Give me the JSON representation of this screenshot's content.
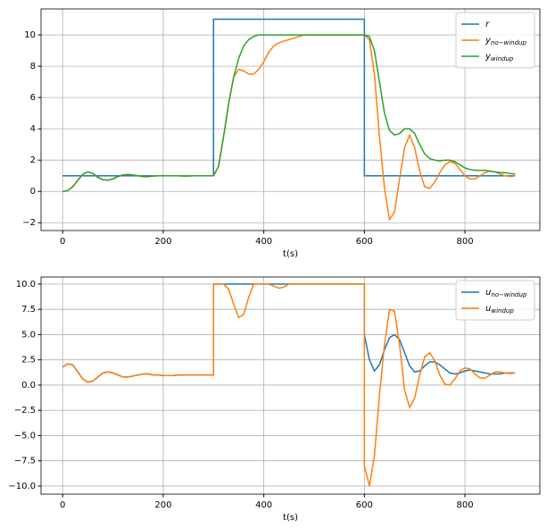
{
  "chart_data": [
    {
      "type": "line",
      "xlabel": "t(s)",
      "x": [
        0,
        10,
        20,
        30,
        40,
        50,
        60,
        70,
        80,
        90,
        100,
        110,
        120,
        130,
        140,
        150,
        160,
        170,
        180,
        190,
        200,
        210,
        220,
        230,
        240,
        250,
        260,
        270,
        280,
        290,
        300,
        300,
        310,
        320,
        330,
        340,
        350,
        360,
        370,
        380,
        390,
        400,
        410,
        420,
        430,
        440,
        450,
        460,
        470,
        480,
        490,
        500,
        510,
        520,
        530,
        540,
        550,
        560,
        570,
        580,
        590,
        600,
        600,
        610,
        620,
        630,
        640,
        650,
        660,
        670,
        680,
        690,
        700,
        710,
        720,
        730,
        740,
        750,
        760,
        770,
        780,
        790,
        800,
        810,
        820,
        830,
        840,
        850,
        860,
        870,
        880,
        890,
        900
      ],
      "series": [
        {
          "name": "r",
          "color": "#1f77b4",
          "values": [
            1,
            1,
            1,
            1,
            1,
            1,
            1,
            1,
            1,
            1,
            1,
            1,
            1,
            1,
            1,
            1,
            1,
            1,
            1,
            1,
            1,
            1,
            1,
            1,
            1,
            1,
            1,
            1,
            1,
            1,
            1,
            11,
            11,
            11,
            11,
            11,
            11,
            11,
            11,
            11,
            11,
            11,
            11,
            11,
            11,
            11,
            11,
            11,
            11,
            11,
            11,
            11,
            11,
            11,
            11,
            11,
            11,
            11,
            11,
            11,
            11,
            11,
            1,
            1,
            1,
            1,
            1,
            1,
            1,
            1,
            1,
            1,
            1,
            1,
            1,
            1,
            1,
            1,
            1,
            1,
            1,
            1,
            1,
            1,
            1,
            1,
            1,
            1,
            1,
            1,
            1,
            1,
            1
          ]
        },
        {
          "name": "y",
          "subscript": "no−windup",
          "color": "#ff7f0e",
          "values": [
            0,
            0.05,
            0.3,
            0.7,
            1.1,
            1.25,
            1.15,
            0.9,
            0.75,
            0.72,
            0.8,
            0.95,
            1.05,
            1.08,
            1.05,
            1.0,
            0.95,
            0.95,
            0.98,
            1.0,
            1.0,
            1.0,
            1.0,
            1.0,
            0.98,
            0.98,
            1.0,
            1.0,
            1.0,
            1.0,
            1.0,
            1.0,
            1.6,
            3.5,
            5.6,
            7.3,
            7.8,
            7.7,
            7.5,
            7.5,
            7.8,
            8.3,
            8.9,
            9.3,
            9.5,
            9.6,
            9.7,
            9.8,
            9.9,
            10,
            10,
            10,
            10,
            10,
            10,
            10,
            10,
            10,
            10,
            10,
            10,
            10,
            10,
            9.7,
            7.5,
            3.5,
            0.2,
            -1.8,
            -1.3,
            0.8,
            2.8,
            3.6,
            2.8,
            1.3,
            0.3,
            0.2,
            0.6,
            1.2,
            1.7,
            1.9,
            1.8,
            1.4,
            1.0,
            0.8,
            0.8,
            1.0,
            1.2,
            1.3,
            1.25,
            1.1,
            1.0,
            0.95,
            1.0
          ]
        },
        {
          "name": "y",
          "subscript": "windup",
          "color": "#2ca02c",
          "values": [
            0,
            0.05,
            0.3,
            0.7,
            1.1,
            1.25,
            1.15,
            0.9,
            0.75,
            0.72,
            0.8,
            0.95,
            1.05,
            1.08,
            1.05,
            1.0,
            0.95,
            0.95,
            0.98,
            1.0,
            1.0,
            1.0,
            1.0,
            1.0,
            0.98,
            0.98,
            1.0,
            1.0,
            1.0,
            1.0,
            1.0,
            1.0,
            1.6,
            3.5,
            5.6,
            7.3,
            8.5,
            9.3,
            9.7,
            9.9,
            10,
            10,
            10,
            10,
            10,
            10,
            10,
            10,
            10,
            10,
            10,
            10,
            10,
            10,
            10,
            10,
            10,
            10,
            10,
            10,
            10,
            10,
            10,
            9.9,
            9.0,
            7.0,
            5.0,
            3.9,
            3.6,
            3.7,
            4.0,
            4.0,
            3.7,
            3.0,
            2.4,
            2.1,
            2.0,
            1.95,
            2.0,
            2.0,
            1.9,
            1.7,
            1.5,
            1.4,
            1.35,
            1.35,
            1.35,
            1.3,
            1.25,
            1.2,
            1.2,
            1.15,
            1.1
          ]
        }
      ],
      "xlim": [
        -43,
        949
      ],
      "xticks": [
        0,
        200,
        400,
        600,
        800
      ],
      "ylim": [
        -2.5,
        11.66
      ],
      "yticks": [
        {
          "value": -2,
          "label": "−2"
        },
        0,
        2,
        4,
        6,
        8,
        10
      ],
      "grid": true,
      "legend": "upper right"
    },
    {
      "type": "line",
      "xlabel": "t(s)",
      "x": [
        0,
        10,
        20,
        30,
        40,
        50,
        60,
        70,
        80,
        90,
        100,
        110,
        120,
        130,
        140,
        150,
        160,
        170,
        180,
        190,
        200,
        210,
        220,
        230,
        240,
        250,
        260,
        270,
        280,
        290,
        300,
        300,
        310,
        320,
        330,
        340,
        350,
        360,
        370,
        380,
        390,
        400,
        410,
        420,
        430,
        440,
        450,
        460,
        470,
        480,
        490,
        500,
        510,
        520,
        530,
        540,
        550,
        560,
        570,
        580,
        590,
        600,
        600,
        610,
        620,
        630,
        640,
        650,
        660,
        670,
        680,
        690,
        700,
        710,
        720,
        730,
        740,
        750,
        760,
        770,
        780,
        790,
        800,
        810,
        820,
        830,
        840,
        850,
        860,
        870,
        880,
        890,
        900
      ],
      "series": [
        {
          "name": "u",
          "subscript": "no−windup",
          "color": "#1f77b4",
          "values": [
            1.8,
            2.1,
            2.0,
            1.3,
            0.6,
            0.3,
            0.4,
            0.8,
            1.2,
            1.3,
            1.2,
            1.0,
            0.8,
            0.8,
            0.9,
            1.0,
            1.1,
            1.1,
            1.0,
            1.0,
            0.95,
            0.95,
            0.95,
            1.0,
            1.0,
            1.0,
            1.0,
            1.0,
            1.0,
            1.0,
            1.0,
            10,
            10,
            10,
            10,
            10,
            10,
            10,
            10,
            10,
            10,
            10,
            10,
            10,
            10,
            10,
            10,
            10,
            10,
            10,
            10,
            10,
            10,
            10,
            10,
            10,
            10,
            10,
            10,
            10,
            10,
            10,
            5.0,
            2.5,
            1.4,
            2.0,
            3.5,
            4.7,
            5.0,
            4.5,
            3.2,
            1.9,
            1.3,
            1.4,
            1.9,
            2.3,
            2.3,
            2.0,
            1.6,
            1.2,
            1.1,
            1.2,
            1.4,
            1.5,
            1.4,
            1.3,
            1.2,
            1.1,
            1.1,
            1.1,
            1.2,
            1.2,
            1.2
          ]
        },
        {
          "name": "u",
          "subscript": "windup",
          "color": "#ff7f0e",
          "values": [
            1.8,
            2.1,
            2.0,
            1.3,
            0.6,
            0.3,
            0.4,
            0.8,
            1.2,
            1.3,
            1.2,
            1.0,
            0.8,
            0.8,
            0.9,
            1.0,
            1.1,
            1.1,
            1.0,
            1.0,
            0.95,
            0.95,
            0.95,
            1.0,
            1.0,
            1.0,
            1.0,
            1.0,
            1.0,
            1.0,
            1.0,
            10,
            10,
            10,
            9.5,
            8.0,
            6.7,
            7.0,
            8.7,
            10,
            10,
            10,
            10,
            9.8,
            9.6,
            9.7,
            10,
            10,
            10,
            10,
            10,
            10,
            10,
            10,
            10,
            10,
            10,
            10,
            10,
            10,
            10,
            10,
            -8,
            -10,
            -7,
            -1,
            4,
            7.5,
            7.3,
            4,
            -0.5,
            -2.2,
            -1.3,
            1,
            2.8,
            3.2,
            2.4,
            1,
            0.1,
            0,
            0.6,
            1.4,
            1.7,
            1.6,
            1.1,
            0.7,
            0.7,
            1.0,
            1.3,
            1.3,
            1.2,
            1.15,
            1.2
          ]
        }
      ],
      "xlim": [
        -43,
        949
      ],
      "xticks": [
        0,
        200,
        400,
        600,
        800
      ],
      "ylim": [
        -10.8,
        10.7
      ],
      "yticks": [
        {
          "value": -10,
          "label": "−10.0"
        },
        {
          "value": -7.5,
          "label": "−7.5"
        },
        {
          "value": -5,
          "label": "−5.0"
        },
        {
          "value": -2.5,
          "label": "−2.5"
        },
        {
          "value": 0,
          "label": "0.0"
        },
        2.5,
        {
          "value": 5,
          "label": "5.0"
        },
        7.5,
        {
          "value": 10,
          "label": "10.0"
        }
      ],
      "grid": true,
      "legend": "upper right"
    }
  ]
}
